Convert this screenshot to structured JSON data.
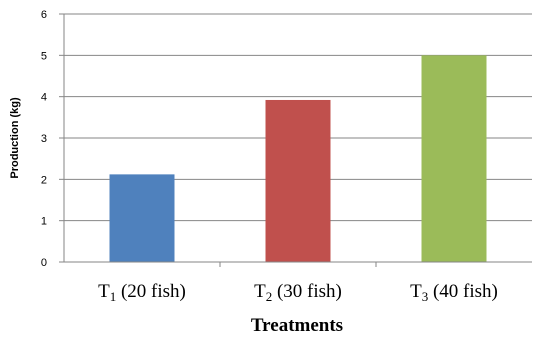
{
  "chart_data": {
    "type": "bar",
    "categories": [
      {
        "base": "T",
        "sub": "1",
        "rest": " (20 fish)"
      },
      {
        "base": "T",
        "sub": "2",
        "rest": " (30 fish)"
      },
      {
        "base": "T",
        "sub": "3",
        "rest": " (40 fish)"
      }
    ],
    "values": [
      2.12,
      3.92,
      5.0
    ],
    "colors": [
      "#4f81bd",
      "#c0504d",
      "#9bbb59"
    ],
    "xlabel": "Treatments",
    "ylabel": "Production (kg)",
    "ylim": [
      0,
      6
    ],
    "yticks": [
      "0",
      "1",
      "2",
      "3",
      "4",
      "5",
      "6"
    ],
    "grid": true
  }
}
